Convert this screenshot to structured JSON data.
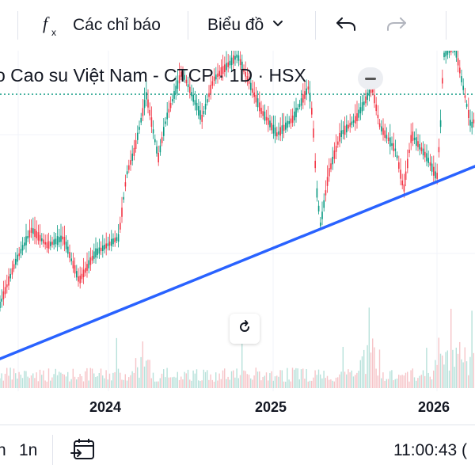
{
  "toolbar": {
    "indicators_icon": "function-icon",
    "indicators_label": "Các chỉ báo",
    "chart_type_label": "Biểu đồ",
    "undo_icon": "undo-icon",
    "redo_icon": "redo-icon"
  },
  "chart": {
    "title": "o Cao su Việt Nam - CTCP · 1D · HSX",
    "line_color": "#2962ff",
    "candle_up_color": "#089981",
    "candle_down_color": "#f23645"
  },
  "chart_data": {
    "type": "candlestick",
    "x_tick_labels": [
      "2024",
      "2025",
      "2026"
    ],
    "trendline": "upward support line drawn under price lows",
    "volume": "volume histogram along bottom of chart"
  },
  "bottom": {
    "range_first": "1n",
    "range_partial": "n",
    "clock": "11:00:43 ("
  }
}
